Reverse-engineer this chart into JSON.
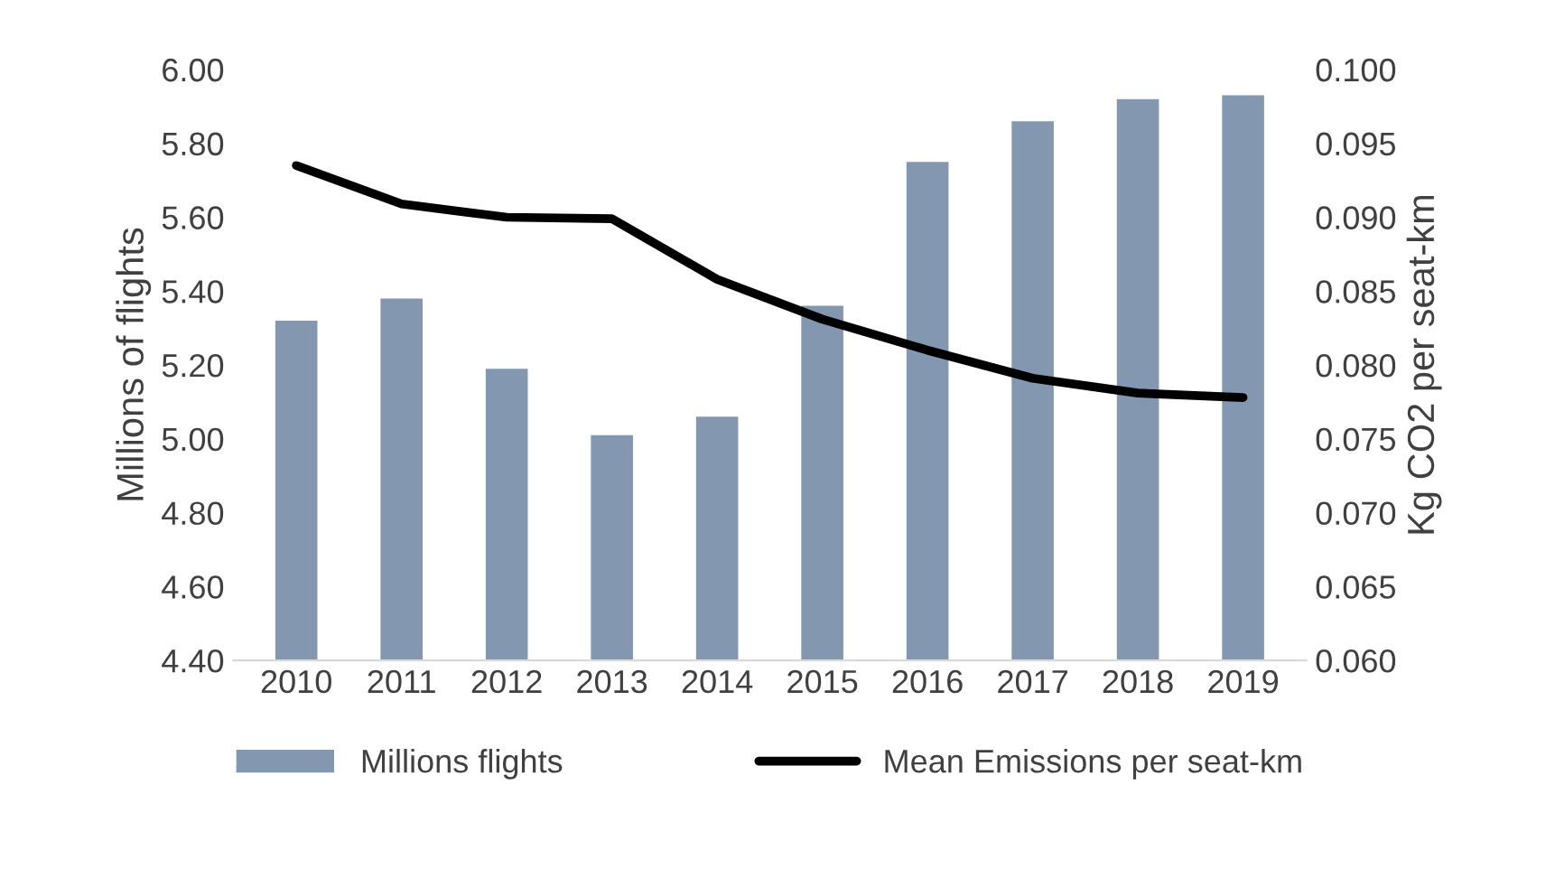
{
  "chart_data": {
    "type": "bar",
    "categories": [
      "2010",
      "2011",
      "2012",
      "2013",
      "2014",
      "2015",
      "2016",
      "2017",
      "2018",
      "2019"
    ],
    "ylabel": "Millions of flights",
    "y2label": "Kg CO2 per seat-km",
    "ylim": [
      4.4,
      6.0
    ],
    "yticks": [
      {
        "value": 4.4,
        "label": "4.40"
      },
      {
        "value": 4.6,
        "label": "4.60"
      },
      {
        "value": 4.8,
        "label": "4.80"
      },
      {
        "value": 5.0,
        "label": "5.00"
      },
      {
        "value": 5.2,
        "label": "5.20"
      },
      {
        "value": 5.4,
        "label": "5.40"
      },
      {
        "value": 5.6,
        "label": "5.60"
      },
      {
        "value": 5.8,
        "label": "5.80"
      },
      {
        "value": 6.0,
        "label": "6.00"
      }
    ],
    "y2lim": [
      0.06,
      0.1
    ],
    "y2ticks": [
      {
        "value": 0.06,
        "label": "0.060"
      },
      {
        "value": 0.065,
        "label": "0.065"
      },
      {
        "value": 0.07,
        "label": "0.070"
      },
      {
        "value": 0.075,
        "label": "0.075"
      },
      {
        "value": 0.08,
        "label": "0.080"
      },
      {
        "value": 0.085,
        "label": "0.085"
      },
      {
        "value": 0.09,
        "label": "0.090"
      },
      {
        "value": 0.095,
        "label": "0.095"
      },
      {
        "value": 0.1,
        "label": "0.100"
      }
    ],
    "series": [
      {
        "name": "Millions flights",
        "color": "#8497b0",
        "values": [
          5.32,
          5.38,
          5.19,
          5.01,
          5.06,
          5.36,
          5.75,
          5.86,
          5.92,
          5.93
        ]
      },
      {
        "name": "Mean Emissions per seat-km",
        "type": "line",
        "axis": "y2",
        "color": "#000000",
        "values": [
          0.0935,
          0.0909,
          0.09,
          0.0899,
          0.0858,
          0.0831,
          0.081,
          0.0791,
          0.0781,
          0.0778
        ]
      }
    ],
    "legend": "bottom",
    "grid": false
  }
}
